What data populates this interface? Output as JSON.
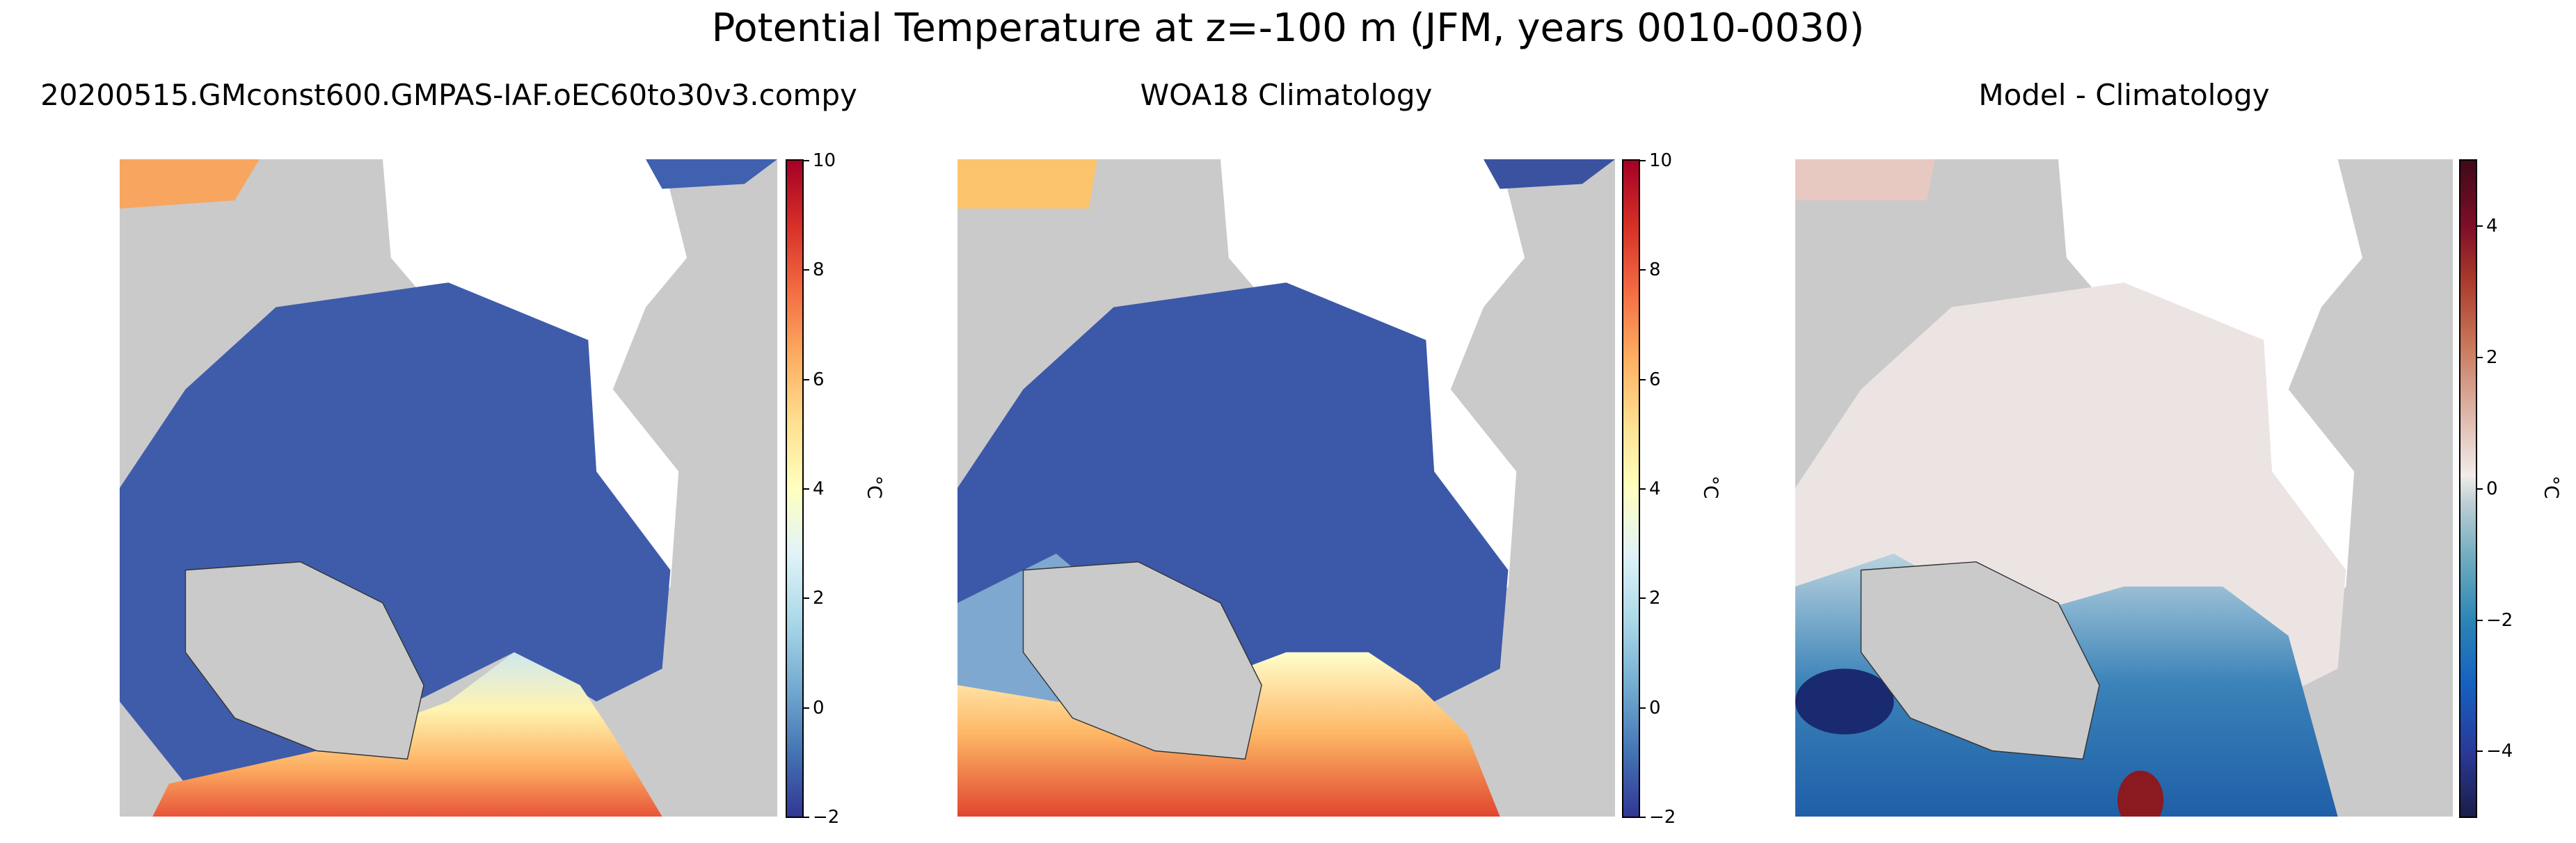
{
  "title": "Potential Temperature at z=-100 m (JFM, years 0010-0030)",
  "chart_data": [
    {
      "type": "heatmap",
      "title": "20200515.GMconst600.GMPAS-IAF.oEC60to30v3.compy",
      "projection": "north polar stereographic",
      "colorbar": {
        "label": "°C",
        "range": [
          -2,
          10
        ],
        "ticks": [
          "10",
          "8",
          "6",
          "4",
          "2",
          "0",
          "−2"
        ],
        "tick_values": [
          10,
          8,
          6,
          4,
          2,
          0,
          -2
        ],
        "colormap": "RdYlBu_r"
      }
    },
    {
      "type": "heatmap",
      "title": "WOA18 Climatology",
      "projection": "north polar stereographic",
      "colorbar": {
        "label": "°C",
        "range": [
          -2,
          10
        ],
        "ticks": [
          "10",
          "8",
          "6",
          "4",
          "2",
          "0",
          "−2"
        ],
        "tick_values": [
          10,
          8,
          6,
          4,
          2,
          0,
          -2
        ],
        "colormap": "RdYlBu_r"
      }
    },
    {
      "type": "heatmap",
      "title": "Model - Climatology",
      "projection": "north polar stereographic",
      "colorbar": {
        "label": "°C",
        "range": [
          -5,
          5
        ],
        "ticks": [
          "4",
          "2",
          "0",
          "−2",
          "−4"
        ],
        "tick_values": [
          4,
          2,
          0,
          -2,
          -4
        ],
        "colormap": "balance"
      }
    }
  ]
}
